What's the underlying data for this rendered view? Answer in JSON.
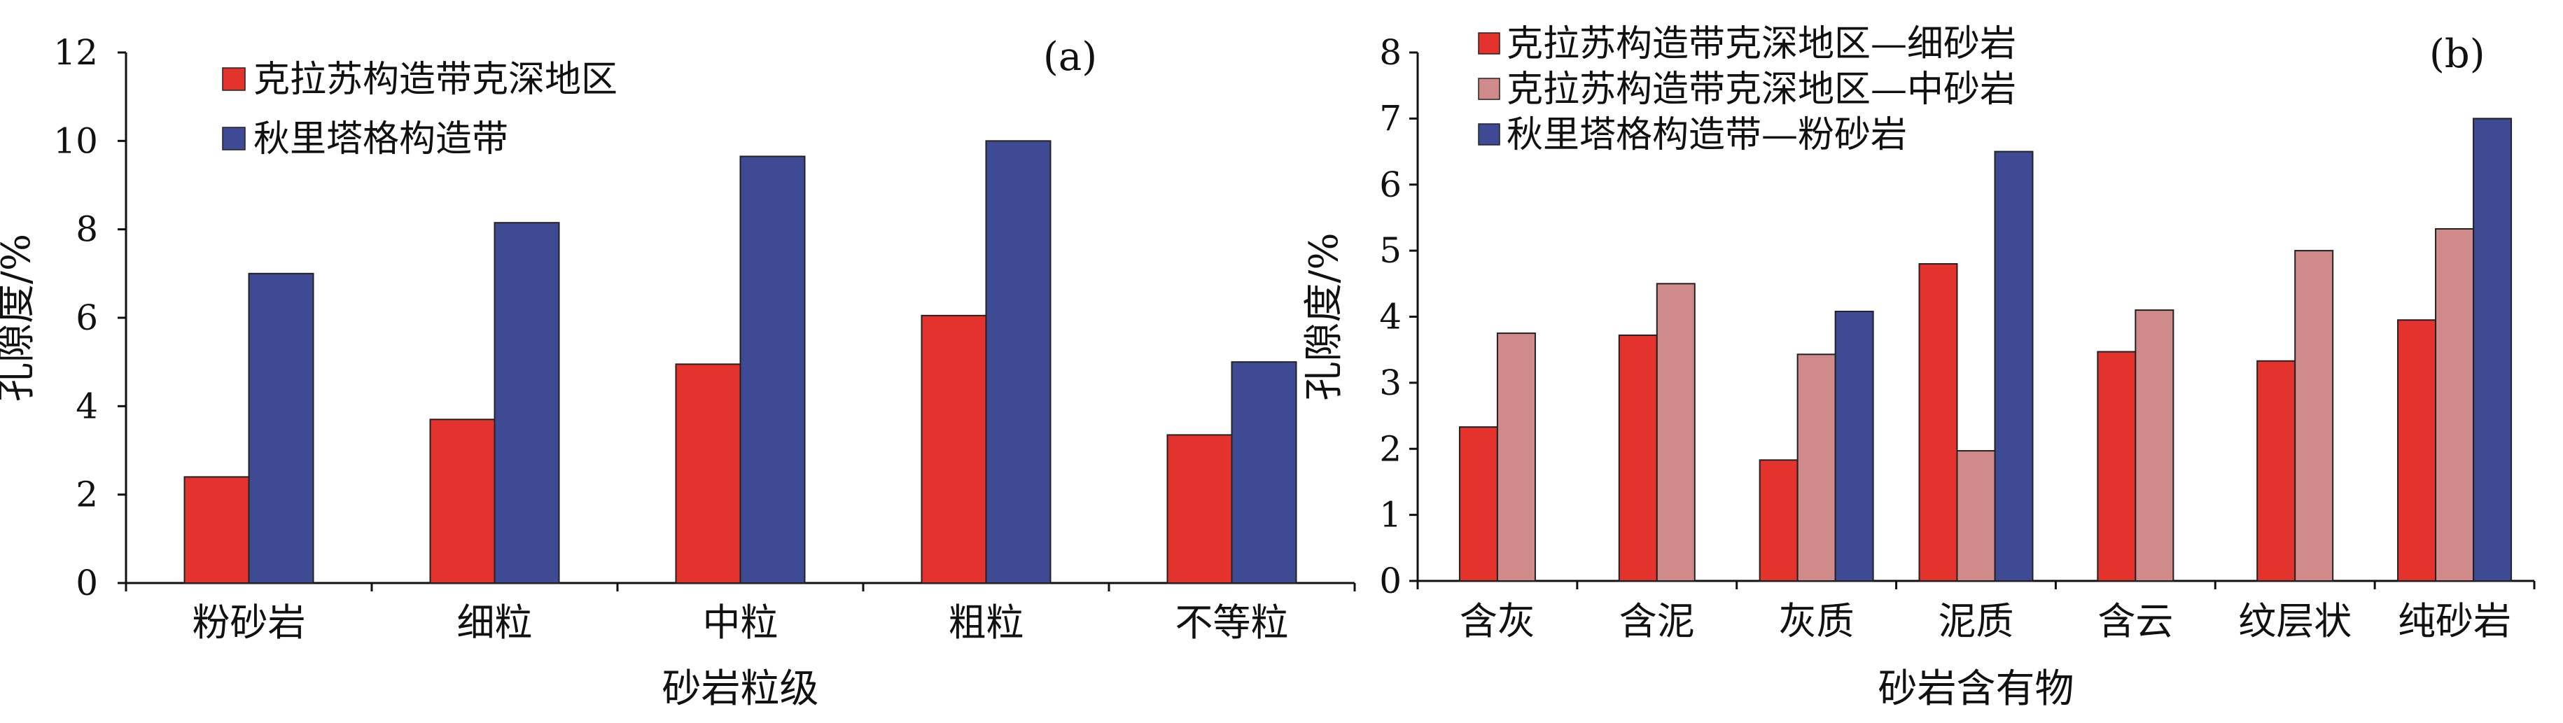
{
  "colors": {
    "red": "#e3332c",
    "pink": "#d18a8a",
    "blue": "#3f4a94",
    "axis": "#111111",
    "bar_stroke": "#222222"
  },
  "chart_data": [
    {
      "type": "bar",
      "panel_label": "(a)",
      "xlabel": "砂岩粒级",
      "ylabel": "孔隙度/%",
      "ylim": [
        0,
        12
      ],
      "yticks": [
        0,
        2,
        4,
        6,
        8,
        10,
        12
      ],
      "categories": [
        "粉砂岩",
        "细粒",
        "中粒",
        "粗粒",
        "不等粒"
      ],
      "series": [
        {
          "name": "克拉苏构造带克深地区",
          "color": "red",
          "values": [
            2.4,
            3.7,
            4.95,
            6.05,
            3.35
          ]
        },
        {
          "name": "秋里塔格构造带",
          "color": "blue",
          "values": [
            7.0,
            8.15,
            9.65,
            10.0,
            5.0
          ]
        }
      ],
      "legend_position": "top-left"
    },
    {
      "type": "bar",
      "panel_label": "(b)",
      "xlabel": "砂岩含有物",
      "ylabel": "孔隙度/%",
      "ylim": [
        0,
        8
      ],
      "yticks": [
        0,
        1,
        2,
        3,
        4,
        5,
        6,
        7,
        8
      ],
      "categories": [
        "含灰",
        "含泥",
        "灰质",
        "泥质",
        "含云",
        "纹层状",
        "纯砂岩"
      ],
      "series": [
        {
          "name": "克拉苏构造带克深地区—细砂岩",
          "color": "red",
          "values": [
            2.33,
            3.72,
            1.83,
            4.8,
            3.47,
            3.33,
            3.95
          ]
        },
        {
          "name": "克拉苏构造带克深地区—中砂岩",
          "color": "pink",
          "values": [
            3.75,
            4.5,
            3.43,
            1.97,
            4.1,
            5.0,
            5.33
          ]
        },
        {
          "name": "秋里塔格构造带—粉砂岩",
          "color": "blue",
          "values": [
            null,
            null,
            4.08,
            6.5,
            null,
            null,
            7.0
          ]
        }
      ],
      "legend_position": "top-left"
    }
  ]
}
